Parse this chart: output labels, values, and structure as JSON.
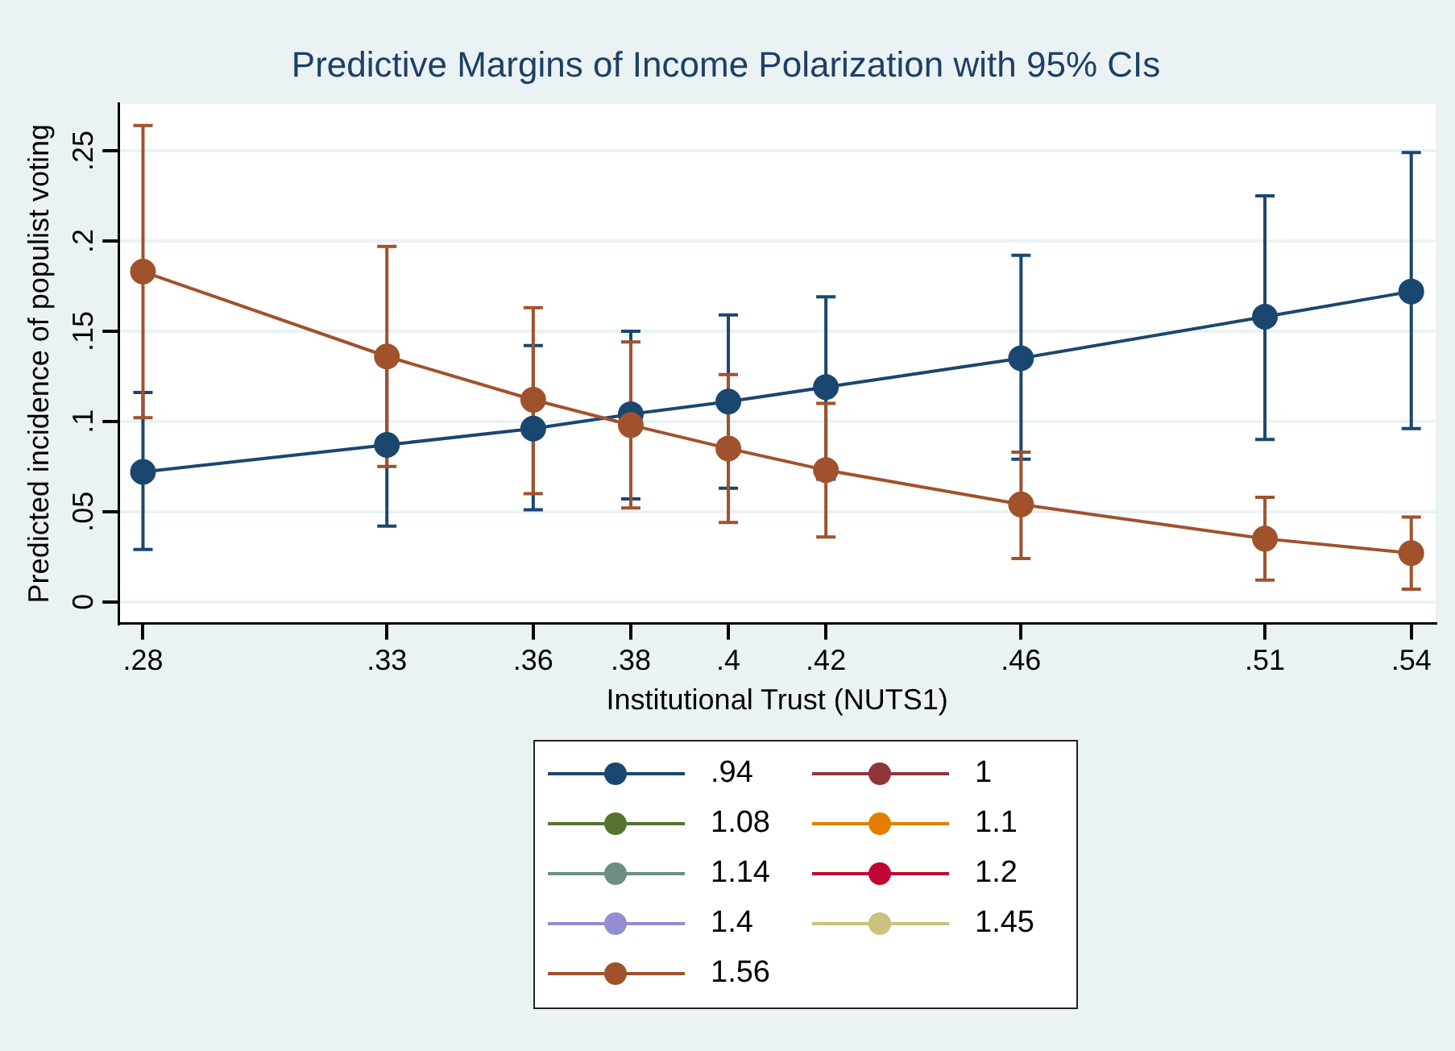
{
  "chart_data": {
    "type": "line",
    "title": "Predictive Margins of Income Polarization with 95% CIs",
    "xlabel": "Institutional Trust (NUTS1)",
    "ylabel": "Predicted incidence of populist voting",
    "x": [
      0.28,
      0.33,
      0.36,
      0.38,
      0.4,
      0.42,
      0.46,
      0.51,
      0.54
    ],
    "xlim": [
      0.275,
      0.545
    ],
    "xticks": [
      {
        "value": 0.28,
        "label": ".28"
      },
      {
        "value": 0.33,
        "label": ".33"
      },
      {
        "value": 0.36,
        "label": ".36"
      },
      {
        "value": 0.38,
        "label": ".38"
      },
      {
        "value": 0.4,
        "label": ".4"
      },
      {
        "value": 0.42,
        "label": ".42"
      },
      {
        "value": 0.46,
        "label": ".46"
      },
      {
        "value": 0.51,
        "label": ".51"
      },
      {
        "value": 0.54,
        "label": ".54"
      }
    ],
    "ylim": [
      -0.012,
      0.276
    ],
    "yticks": [
      0,
      {
        "value": 0.05,
        "label": ".05"
      },
      {
        "value": 0.1,
        "label": ".1"
      },
      {
        "value": 0.15,
        "label": ".15"
      },
      {
        "value": 0.2,
        "label": ".2"
      },
      {
        "value": 0.25,
        "label": ".25"
      }
    ],
    "grid": "y",
    "legend": "bottom",
    "marker": "circle",
    "line_style": "solid",
    "series": [
      {
        "name": ".94",
        "color": "#1a476f",
        "values": [
          0.072,
          0.087,
          0.096,
          0.104,
          0.111,
          0.119,
          0.135,
          0.158,
          0.172
        ],
        "errors": [
          [
            0.029,
            0.116
          ],
          [
            0.042,
            0.132
          ],
          [
            0.051,
            0.142
          ],
          [
            0.057,
            0.15
          ],
          [
            0.063,
            0.159
          ],
          [
            0.068,
            0.169
          ],
          [
            0.079,
            0.192
          ],
          [
            0.09,
            0.225
          ],
          [
            0.096,
            0.249
          ]
        ]
      },
      {
        "name": "1",
        "color": "#90353b",
        "values": [
          null,
          null,
          null,
          null,
          null,
          null,
          null,
          null,
          null
        ]
      },
      {
        "name": "1.08",
        "color": "#55752f",
        "values": [
          null,
          null,
          null,
          null,
          null,
          null,
          null,
          null,
          null
        ]
      },
      {
        "name": "1.1",
        "color": "#e37e00",
        "values": [
          null,
          null,
          null,
          null,
          null,
          null,
          null,
          null,
          null
        ]
      },
      {
        "name": "1.14",
        "color": "#6e8e84",
        "values": [
          null,
          null,
          null,
          null,
          null,
          null,
          null,
          null,
          null
        ]
      },
      {
        "name": "1.2",
        "color": "#c10534",
        "values": [
          null,
          null,
          null,
          null,
          null,
          null,
          null,
          null,
          null
        ]
      },
      {
        "name": "1.4",
        "color": "#938dd2",
        "values": [
          null,
          null,
          null,
          null,
          null,
          null,
          null,
          null,
          null
        ]
      },
      {
        "name": "1.45",
        "color": "#cac27e",
        "values": [
          null,
          null,
          null,
          null,
          null,
          null,
          null,
          null,
          null
        ]
      },
      {
        "name": "1.56",
        "color": "#a0522d",
        "values": [
          0.183,
          0.136,
          0.112,
          0.098,
          0.085,
          0.073,
          0.054,
          0.035,
          0.027
        ],
        "errors": [
          [
            0.102,
            0.264
          ],
          [
            0.075,
            0.197
          ],
          [
            0.06,
            0.163
          ],
          [
            0.052,
            0.144
          ],
          [
            0.044,
            0.126
          ],
          [
            0.036,
            0.11
          ],
          [
            0.024,
            0.083
          ],
          [
            0.012,
            0.058
          ],
          [
            0.007,
            0.047
          ]
        ]
      }
    ]
  }
}
